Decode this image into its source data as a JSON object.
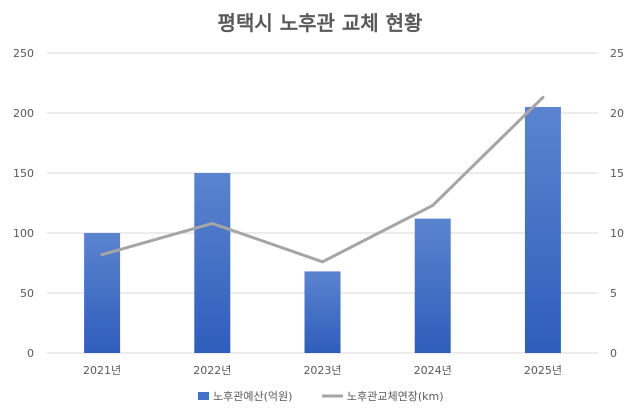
{
  "chart_data": {
    "type": "bar",
    "title": "평택시 노후관 교체 현황",
    "categories": [
      "2021년",
      "2022년",
      "2023년",
      "2024년",
      "2025년"
    ],
    "series": [
      {
        "name": "노후관예산(억원)",
        "type": "bar",
        "axis": "left",
        "values": [
          100,
          150,
          68,
          112,
          205
        ],
        "color": "#4472C4"
      },
      {
        "name": "노후관교체연장(km)",
        "type": "line",
        "axis": "right",
        "values": [
          8.2,
          10.8,
          7.6,
          12.3,
          21.3
        ],
        "color": "#A5A5A5"
      }
    ],
    "y_left": {
      "min": 0,
      "max": 250,
      "ticks": [
        0,
        50,
        100,
        150,
        200,
        250
      ]
    },
    "y_right": {
      "min": 0,
      "max": 25,
      "ticks": [
        0,
        5,
        10,
        15,
        20,
        25
      ]
    },
    "grid": true,
    "legend": "bottom"
  }
}
